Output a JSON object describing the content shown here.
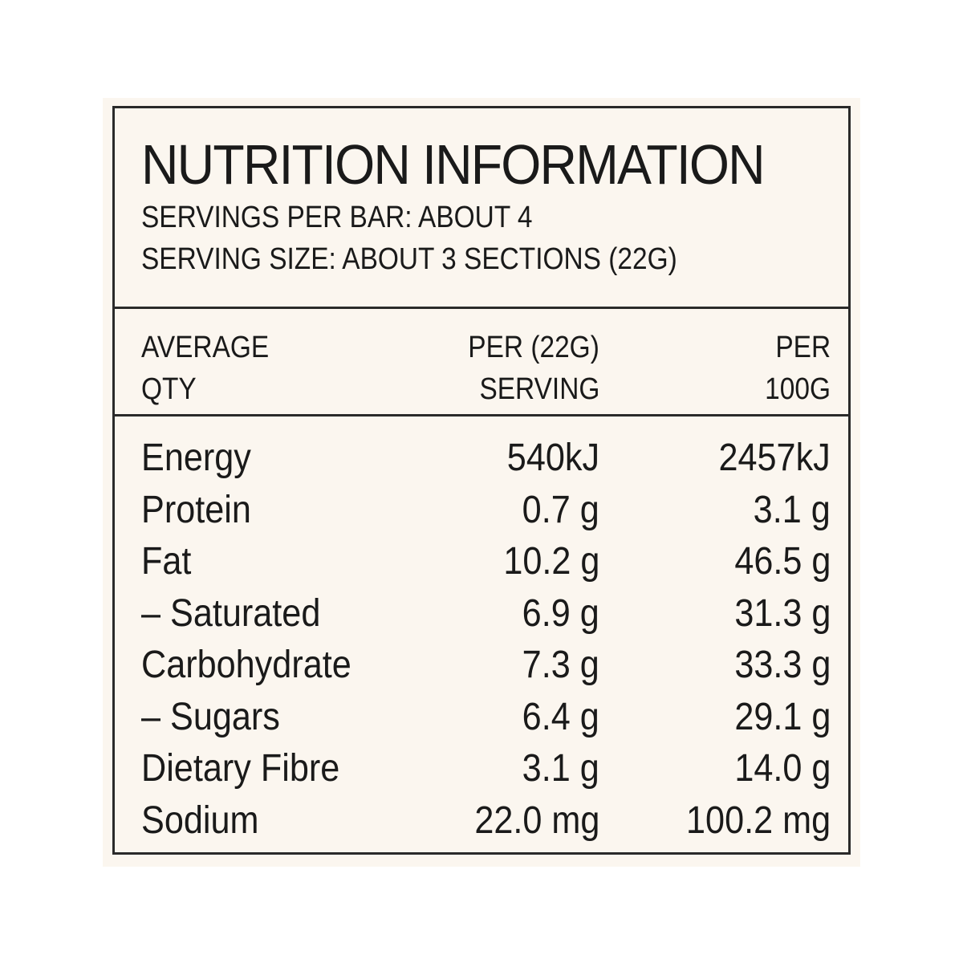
{
  "header": {
    "title": "NUTRITION INFORMATION",
    "servings": "SERVINGS PER BAR: ABOUT 4",
    "serving_size": "SERVING SIZE: ABOUT 3 SECTIONS (22G)"
  },
  "table": {
    "columns": [
      [
        "AVERAGE",
        "QTY"
      ],
      [
        "PER (22G)",
        "SERVING"
      ],
      [
        "PER",
        "100G"
      ]
    ],
    "rows": [
      [
        "Energy",
        "540kJ",
        "2457kJ"
      ],
      [
        "Protein",
        "0.7 g",
        "3.1 g"
      ],
      [
        "Fat",
        "10.2 g",
        "46.5 g"
      ],
      [
        "– Saturated",
        "6.9 g",
        "31.3 g"
      ],
      [
        "Carbohydrate",
        "7.3 g",
        "33.3 g"
      ],
      [
        "– Sugars",
        "6.4 g",
        "29.1 g"
      ],
      [
        "Dietary Fibre",
        "3.1 g",
        "14.0 g"
      ],
      [
        "Sodium",
        "22.0 mg",
        "100.2 mg"
      ]
    ]
  }
}
